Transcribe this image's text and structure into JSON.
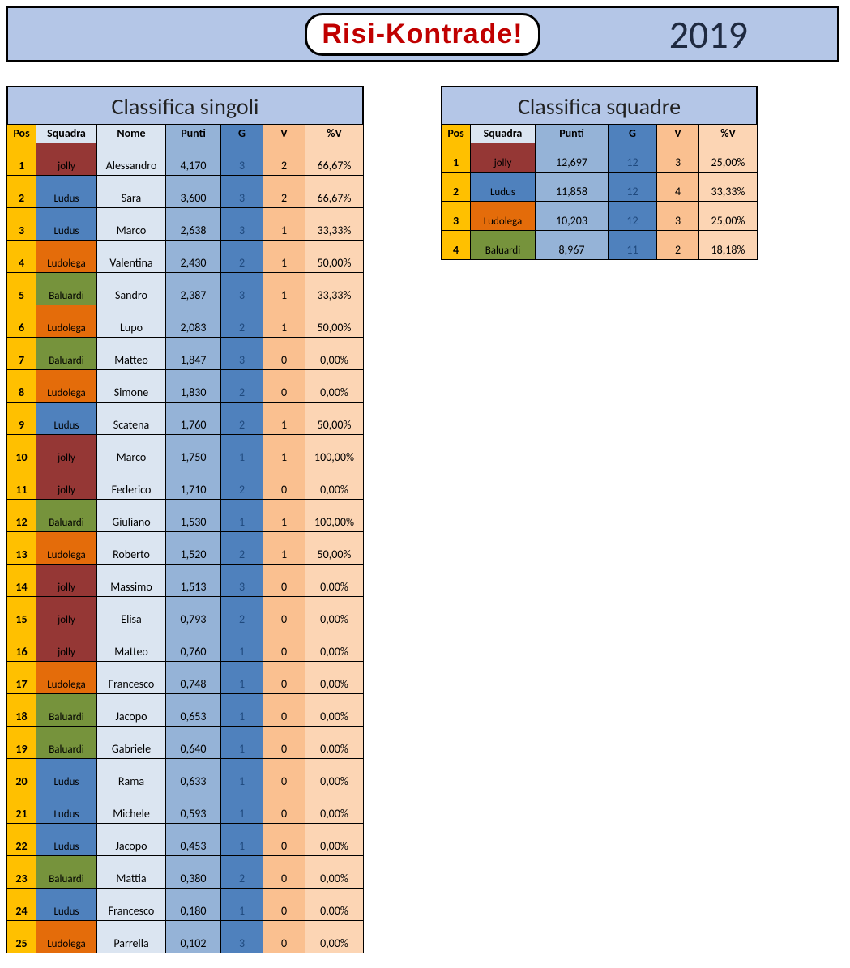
{
  "banner": {
    "logo_text": "Risi-Kontrade!",
    "year": "2019"
  },
  "team_colors": {
    "jolly": "#953735",
    "Ludus": "#4f81bd",
    "Ludolega": "#e46c0a",
    "Baluardi": "#76933c"
  },
  "singles": {
    "title": "Classifica singoli",
    "headers": {
      "pos": "Pos",
      "squad": "Squadra",
      "nome": "Nome",
      "punti": "Punti",
      "g": "G",
      "v": "V",
      "pv": "%V"
    },
    "rows": [
      {
        "pos": "1",
        "squad": "jolly",
        "nome": "Alessandro",
        "punti": "4,170",
        "g": "3",
        "v": "2",
        "pv": "66,67%"
      },
      {
        "pos": "2",
        "squad": "Ludus",
        "nome": "Sara",
        "punti": "3,600",
        "g": "3",
        "v": "2",
        "pv": "66,67%"
      },
      {
        "pos": "3",
        "squad": "Ludus",
        "nome": "Marco",
        "punti": "2,638",
        "g": "3",
        "v": "1",
        "pv": "33,33%"
      },
      {
        "pos": "4",
        "squad": "Ludolega",
        "nome": "Valentina",
        "punti": "2,430",
        "g": "2",
        "v": "1",
        "pv": "50,00%"
      },
      {
        "pos": "5",
        "squad": "Baluardi",
        "nome": "Sandro",
        "punti": "2,387",
        "g": "3",
        "v": "1",
        "pv": "33,33%"
      },
      {
        "pos": "6",
        "squad": "Ludolega",
        "nome": "Lupo",
        "punti": "2,083",
        "g": "2",
        "v": "1",
        "pv": "50,00%"
      },
      {
        "pos": "7",
        "squad": "Baluardi",
        "nome": "Matteo",
        "punti": "1,847",
        "g": "3",
        "v": "0",
        "pv": "0,00%"
      },
      {
        "pos": "8",
        "squad": "Ludolega",
        "nome": "Simone",
        "punti": "1,830",
        "g": "2",
        "v": "0",
        "pv": "0,00%"
      },
      {
        "pos": "9",
        "squad": "Ludus",
        "nome": "Scatena",
        "punti": "1,760",
        "g": "2",
        "v": "1",
        "pv": "50,00%"
      },
      {
        "pos": "10",
        "squad": "jolly",
        "nome": "Marco",
        "punti": "1,750",
        "g": "1",
        "v": "1",
        "pv": "100,00%"
      },
      {
        "pos": "11",
        "squad": "jolly",
        "nome": "Federico",
        "punti": "1,710",
        "g": "2",
        "v": "0",
        "pv": "0,00%"
      },
      {
        "pos": "12",
        "squad": "Baluardi",
        "nome": "Giuliano",
        "punti": "1,530",
        "g": "1",
        "v": "1",
        "pv": "100,00%"
      },
      {
        "pos": "13",
        "squad": "Ludolega",
        "nome": "Roberto",
        "punti": "1,520",
        "g": "2",
        "v": "1",
        "pv": "50,00%"
      },
      {
        "pos": "14",
        "squad": "jolly",
        "nome": "Massimo",
        "punti": "1,513",
        "g": "3",
        "v": "0",
        "pv": "0,00%"
      },
      {
        "pos": "15",
        "squad": "jolly",
        "nome": "Elisa",
        "punti": "0,793",
        "g": "2",
        "v": "0",
        "pv": "0,00%"
      },
      {
        "pos": "16",
        "squad": "jolly",
        "nome": "Matteo",
        "punti": "0,760",
        "g": "1",
        "v": "0",
        "pv": "0,00%"
      },
      {
        "pos": "17",
        "squad": "Ludolega",
        "nome": "Francesco",
        "punti": "0,748",
        "g": "1",
        "v": "0",
        "pv": "0,00%"
      },
      {
        "pos": "18",
        "squad": "Baluardi",
        "nome": "Jacopo",
        "punti": "0,653",
        "g": "1",
        "v": "0",
        "pv": "0,00%"
      },
      {
        "pos": "19",
        "squad": "Baluardi",
        "nome": "Gabriele",
        "punti": "0,640",
        "g": "1",
        "v": "0",
        "pv": "0,00%"
      },
      {
        "pos": "20",
        "squad": "Ludus",
        "nome": "Rama",
        "punti": "0,633",
        "g": "1",
        "v": "0",
        "pv": "0,00%"
      },
      {
        "pos": "21",
        "squad": "Ludus",
        "nome": "Michele",
        "punti": "0,593",
        "g": "1",
        "v": "0",
        "pv": "0,00%"
      },
      {
        "pos": "22",
        "squad": "Ludus",
        "nome": "Jacopo",
        "punti": "0,453",
        "g": "1",
        "v": "0",
        "pv": "0,00%"
      },
      {
        "pos": "23",
        "squad": "Baluardi",
        "nome": "Mattia",
        "punti": "0,380",
        "g": "2",
        "v": "0",
        "pv": "0,00%"
      },
      {
        "pos": "24",
        "squad": "Ludus",
        "nome": "Francesco",
        "punti": "0,180",
        "g": "1",
        "v": "0",
        "pv": "0,00%"
      },
      {
        "pos": "25",
        "squad": "Ludolega",
        "nome": "Parrella",
        "punti": "0,102",
        "g": "3",
        "v": "0",
        "pv": "0,00%"
      }
    ]
  },
  "teams": {
    "title": "Classifica squadre",
    "headers": {
      "pos": "Pos",
      "squad": "Squadra",
      "punti": "Punti",
      "g": "G",
      "v": "V",
      "pv": "%V"
    },
    "rows": [
      {
        "pos": "1",
        "squad": "jolly",
        "punti": "12,697",
        "g": "12",
        "v": "3",
        "pv": "25,00%"
      },
      {
        "pos": "2",
        "squad": "Ludus",
        "punti": "11,858",
        "g": "12",
        "v": "4",
        "pv": "33,33%"
      },
      {
        "pos": "3",
        "squad": "Ludolega",
        "punti": "10,203",
        "g": "12",
        "v": "3",
        "pv": "25,00%"
      },
      {
        "pos": "4",
        "squad": "Baluardi",
        "punti": "8,967",
        "g": "11",
        "v": "2",
        "pv": "18,18%"
      }
    ]
  }
}
